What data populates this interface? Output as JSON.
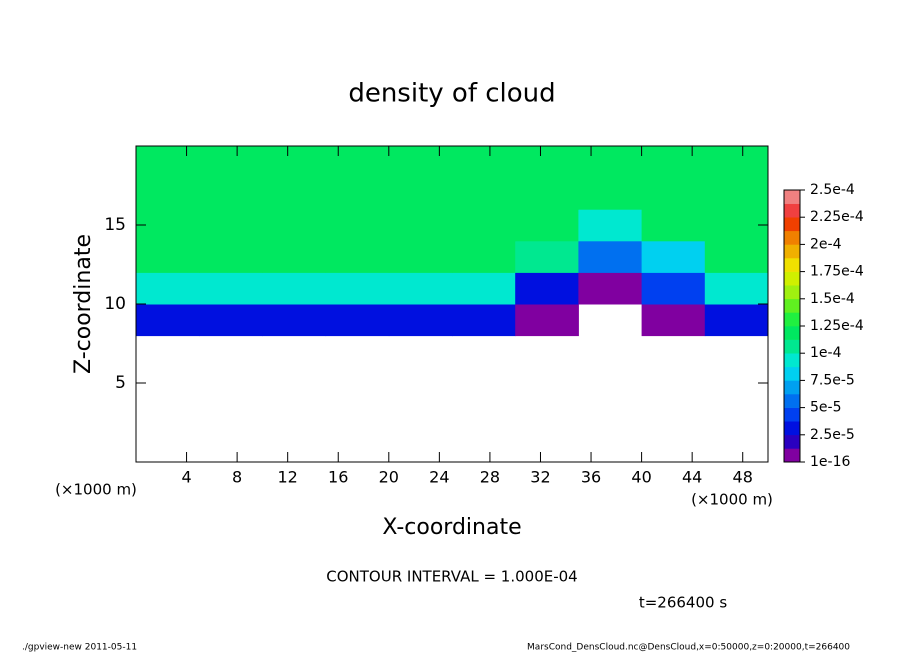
{
  "chart_data": {
    "type": "heatmap",
    "title": "density of cloud",
    "xlabel": "X-coordinate",
    "ylabel": "Z-coordinate",
    "x_unit_labels": [
      "(×1000 m)",
      "(×1000 m)"
    ],
    "contour_note": "CONTOUR INTERVAL = 1.000E-04",
    "time_label": "t=266400 s",
    "footer_left": "./gpview-new  2011-05-11",
    "footer_right": "MarsCond_DensCloud.nc@DensCloud,x=0:50000,z=0:20000,t=266400",
    "xlim": [
      0,
      50
    ],
    "ylim": [
      0,
      20
    ],
    "xticks": [
      4,
      8,
      12,
      16,
      20,
      24,
      28,
      32,
      36,
      40,
      44,
      48
    ],
    "yticks": [
      5,
      10,
      15
    ],
    "x_edges": [
      0,
      5,
      10,
      15,
      20,
      25,
      30,
      35,
      40,
      45,
      50
    ],
    "z_edges": [
      0,
      2,
      4,
      6,
      8,
      10,
      12,
      14,
      16,
      18,
      20
    ],
    "values": [
      [
        null,
        null,
        null,
        null,
        null,
        null,
        null,
        null,
        null,
        null
      ],
      [
        null,
        null,
        null,
        null,
        null,
        null,
        null,
        null,
        null,
        null
      ],
      [
        null,
        null,
        null,
        null,
        null,
        null,
        null,
        null,
        null,
        null
      ],
      [
        null,
        null,
        null,
        null,
        null,
        null,
        null,
        null,
        null,
        null
      ],
      [
        3e-05,
        3e-05,
        3e-05,
        3e-05,
        3e-05,
        3e-05,
        1e-05,
        null,
        1e-05,
        3e-05
      ],
      [
        9e-05,
        9e-05,
        9e-05,
        9e-05,
        9e-05,
        9e-05,
        3e-05,
        1e-05,
        4e-05,
        9e-05
      ],
      [
        0.000115,
        0.000115,
        0.000115,
        0.000115,
        0.000115,
        0.000115,
        0.000105,
        6e-05,
        8e-05,
        0.000115
      ],
      [
        0.00012,
        0.00012,
        0.00012,
        0.00012,
        0.00012,
        0.00012,
        0.00012,
        0.0001,
        0.00012,
        0.00012
      ],
      [
        0.000125,
        0.000125,
        0.000125,
        0.000125,
        0.000125,
        0.000125,
        0.000125,
        0.000125,
        0.000125,
        0.000125
      ],
      [
        0.000125,
        0.000125,
        0.000125,
        0.000125,
        0.000125,
        0.000125,
        0.000125,
        0.000125,
        0.000125,
        0.000125
      ]
    ],
    "colorbar_ticks": [
      {
        "value": 1e-16,
        "label": "1e-16"
      },
      {
        "value": 2.5e-05,
        "label": "2.5e-5"
      },
      {
        "value": 5e-05,
        "label": "5e-5"
      },
      {
        "value": 7.5e-05,
        "label": "7.5e-5"
      },
      {
        "value": 0.0001,
        "label": "1e-4"
      },
      {
        "value": 0.000125,
        "label": "1.25e-4"
      },
      {
        "value": 0.00015,
        "label": "1.5e-4"
      },
      {
        "value": 0.000175,
        "label": "1.75e-4"
      },
      {
        "value": 0.0002,
        "label": "2e-4"
      },
      {
        "value": 0.000225,
        "label": "2.25e-4"
      },
      {
        "value": 0.00025,
        "label": "2.5e-4"
      }
    ],
    "colorbar_colors": [
      "#8000a0",
      "#2a00c0",
      "#0010e0",
      "#0040f0",
      "#0070f0",
      "#00a0f0",
      "#00d0f0",
      "#00e8d0",
      "#00e890",
      "#00e860",
      "#20f040",
      "#60f020",
      "#a0f010",
      "#d0f000",
      "#f0e000",
      "#f0b000",
      "#f08000",
      "#f04000",
      "#f04040",
      "#f08080"
    ]
  }
}
